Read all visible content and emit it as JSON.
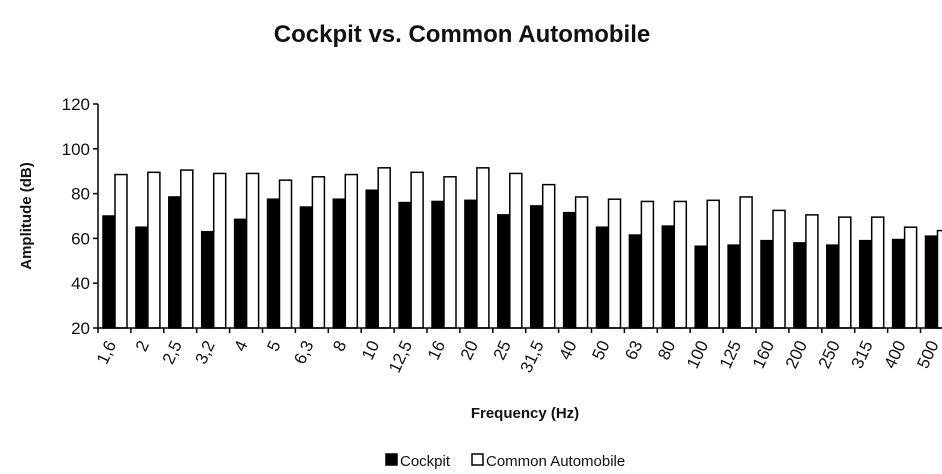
{
  "chart_data": {
    "type": "bar",
    "title": "Cockpit vs. Common Automobile",
    "xlabel": "Frequency (Hz)",
    "ylabel": "Amplitude (dB)",
    "ylim": [
      20,
      120
    ],
    "yticks": [
      20,
      40,
      60,
      80,
      100,
      120
    ],
    "grid": false,
    "legend_position": "bottom",
    "categories": [
      "1,6",
      "2",
      "2,5",
      "3,2",
      "4",
      "5",
      "6,3",
      "8",
      "10",
      "12,5",
      "16",
      "20",
      "25",
      "31,5",
      "40",
      "50",
      "63",
      "80",
      "100",
      "125",
      "160",
      "200",
      "250",
      "315",
      "400",
      "500"
    ],
    "series": [
      {
        "name": "Cockpit",
        "fill": "#000000",
        "stroke": "#000000",
        "values": [
          70,
          65,
          78.5,
          63,
          68.5,
          77.5,
          74,
          77.5,
          81.5,
          76,
          76.5,
          77,
          70.5,
          74.5,
          71.5,
          65,
          61.5,
          65.5,
          56.5,
          57,
          59,
          58,
          57,
          59,
          59.5,
          61
        ]
      },
      {
        "name": "Common Automobile",
        "fill": "#ffffff",
        "stroke": "#000000",
        "values": [
          88.5,
          89.5,
          90.5,
          89,
          89,
          86,
          87.5,
          88.5,
          91.5,
          89.5,
          87.5,
          91.5,
          89,
          84,
          78.5,
          77.5,
          76.5,
          76.5,
          77,
          78.5,
          72.5,
          70.5,
          69.5,
          69.5,
          65,
          63.5
        ]
      }
    ]
  }
}
